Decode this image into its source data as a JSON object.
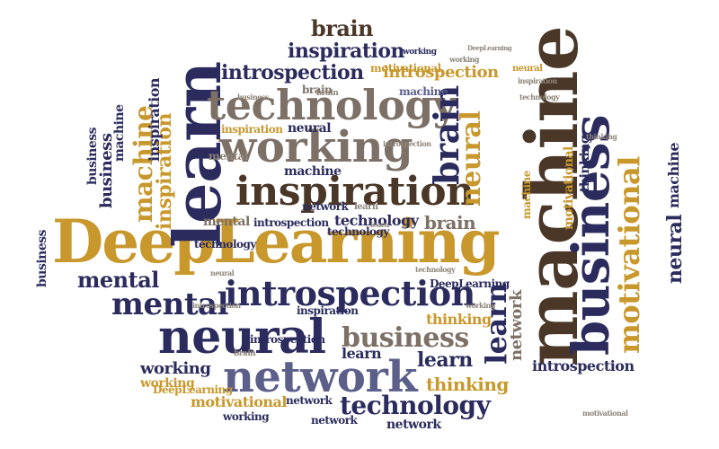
{
  "words": [
    {
      "text": "DeepLearning",
      "color": "#c8982d"
    },
    {
      "text": "machine",
      "color": "#4a3728"
    },
    {
      "text": "learn",
      "color": "#2b2b5e"
    },
    {
      "text": "business",
      "color": "#2b2b5e"
    },
    {
      "text": "network",
      "color": "#5b5f8a"
    },
    {
      "text": "neural",
      "color": "#2b2b5e"
    },
    {
      "text": "working",
      "color": "#7d7066"
    },
    {
      "text": "inspiration",
      "color": "#4a3728"
    },
    {
      "text": "technology",
      "color": "#7d7066"
    },
    {
      "text": "introspection",
      "color": "#2b2b5e"
    },
    {
      "text": "mental",
      "color": "#2b2b5e"
    },
    {
      "text": "motivational",
      "color": "#c8982d"
    },
    {
      "text": "brain",
      "color": "#2b2b5e"
    },
    {
      "text": "brain",
      "color": "#4a3728"
    },
    {
      "text": "inspiration",
      "color": "#2b2b5e"
    },
    {
      "text": "introspection",
      "color": "#2b2b5e"
    },
    {
      "text": "introspection",
      "color": "#c8982d"
    },
    {
      "text": "neural",
      "color": "#c8982d"
    },
    {
      "text": "machine",
      "color": "#c8982d"
    },
    {
      "text": "inspiration",
      "color": "#c8982d"
    },
    {
      "text": "business",
      "color": "#7d7066"
    },
    {
      "text": "technology",
      "color": "#2b2b5e"
    },
    {
      "text": "learn",
      "color": "#2b2b5e"
    },
    {
      "text": "learn",
      "color": "#2b2b5e"
    },
    {
      "text": "working",
      "color": "#2b2b5e"
    },
    {
      "text": "thinking",
      "color": "#c8982d"
    },
    {
      "text": "thinking",
      "color": "#c8982d"
    },
    {
      "text": "network",
      "color": "#7d7066"
    },
    {
      "text": "mental",
      "color": "#2b2b5e"
    },
    {
      "text": "neural",
      "color": "#2b2b5e"
    },
    {
      "text": "machine",
      "color": "#2b2b5e"
    },
    {
      "text": "inspiration",
      "color": "#c8982d"
    },
    {
      "text": "introspection",
      "color": "#2b2b5e"
    },
    {
      "text": "motivational",
      "color": "#c8982d"
    },
    {
      "text": "technology",
      "color": "#2b2b5e"
    },
    {
      "text": "network",
      "color": "#2b2b5e"
    },
    {
      "text": "working",
      "color": "#2b2b5e"
    },
    {
      "text": "network",
      "color": "#2b2b5e"
    },
    {
      "text": "business",
      "color": "#2b2b5e"
    },
    {
      "text": "business",
      "color": "#2b2b5e"
    },
    {
      "text": "business",
      "color": "#2b2b5e"
    },
    {
      "text": "machine",
      "color": "#2b2b5e"
    },
    {
      "text": "brain",
      "color": "#7d7066"
    },
    {
      "text": "machine",
      "color": "#2b2b5e"
    },
    {
      "text": "inspiration",
      "color": "#2b2b5e"
    },
    {
      "text": "motivational",
      "color": "#c8982d"
    },
    {
      "text": "thinking",
      "color": "#2b2b5e"
    },
    {
      "text": "introspection",
      "color": "#2b2b5e"
    },
    {
      "text": "technology",
      "color": "#2b2b5e"
    },
    {
      "text": "neural",
      "color": "#2b2b5e"
    },
    {
      "text": "mental",
      "color": "#7d7066"
    },
    {
      "text": "working",
      "color": "#c8982d"
    },
    {
      "text": "brain",
      "color": "#7d7066"
    },
    {
      "text": "learn",
      "color": "#2b2b5e"
    },
    {
      "text": "DeepLearning",
      "color": "#c8982d"
    },
    {
      "text": "network",
      "color": "#2b2b5e"
    },
    {
      "text": "motivational",
      "color": "#c8982d"
    },
    {
      "text": "DeepLearning",
      "color": "#2b2b5e"
    },
    {
      "text": "introspection",
      "color": "#2b2b5e"
    },
    {
      "text": "technology",
      "color": "#2b2b5e"
    },
    {
      "text": "inspiration",
      "color": "#2b2b5e"
    },
    {
      "text": "working",
      "color": "#7d7066"
    },
    {
      "text": "business",
      "color": "#7d7066"
    },
    {
      "text": "technology",
      "color": "#7d7066"
    },
    {
      "text": "brain",
      "color": "#7d7066"
    },
    {
      "text": "introspection",
      "color": "#7d7066"
    },
    {
      "text": "machine",
      "color": "#2b2b5e"
    },
    {
      "text": "mental",
      "color": "#7d7066"
    },
    {
      "text": "working",
      "color": "#2b2b5e"
    },
    {
      "text": "network",
      "color": "#2b2b5e"
    },
    {
      "text": "learn",
      "color": "#7d7066"
    },
    {
      "text": "neural",
      "color": "#c8982d"
    },
    {
      "text": "machine",
      "color": "#c8982d"
    },
    {
      "text": "inspiration",
      "color": "#7d7066"
    },
    {
      "text": "brain",
      "color": "#7d7066"
    },
    {
      "text": "DeepLearning",
      "color": "#7d7066"
    },
    {
      "text": "introspection",
      "color": "#7d7066"
    },
    {
      "text": "working",
      "color": "#7d7066"
    },
    {
      "text": "technology",
      "color": "#7d7066"
    },
    {
      "text": "learn",
      "color": "#7d7066"
    },
    {
      "text": "neural",
      "color": "#7d7066"
    },
    {
      "text": "motivational",
      "color": "#7d7066"
    },
    {
      "text": "thinking",
      "color": "#7d7066"
    }
  ]
}
